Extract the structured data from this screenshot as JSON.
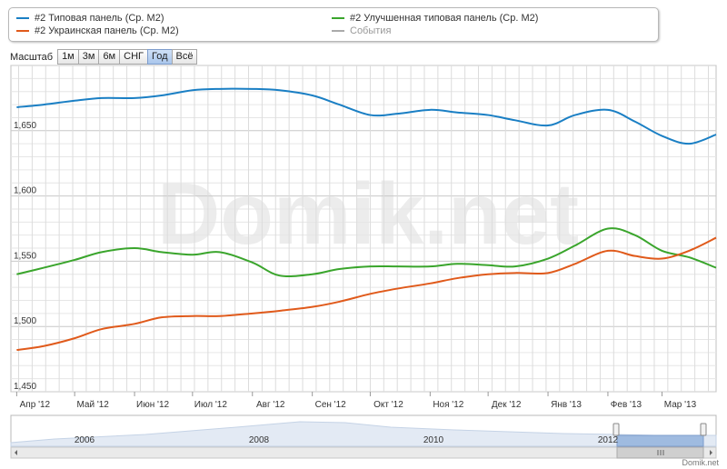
{
  "legend": {
    "items": [
      {
        "label": "#2 Типовая панель (Ср. М2)",
        "color": "#1a7fc4"
      },
      {
        "label": "#2 Улучшенная типовая панель (Ср. М2)",
        "color": "#3aa52c"
      },
      {
        "label": "#2 Украинская панель (Ср. М2)",
        "color": "#e05a1b"
      },
      {
        "label": "События",
        "color": "#aaaaaa"
      }
    ]
  },
  "zoom": {
    "label": "Масштаб",
    "buttons": [
      "1м",
      "3м",
      "6м",
      "СНГ",
      "Год",
      "Всё"
    ],
    "active": "Год"
  },
  "watermark": "Domik.net",
  "credit": "Domik.net",
  "chart_data": {
    "type": "line",
    "x": [
      "2012-04-01",
      "2012-04-15",
      "2012-05-01",
      "2012-05-15",
      "2012-06-01",
      "2012-06-15",
      "2012-07-01",
      "2012-07-15",
      "2012-08-01",
      "2012-08-15",
      "2012-09-01",
      "2012-09-15",
      "2012-10-01",
      "2012-10-15",
      "2012-11-01",
      "2012-11-15",
      "2012-12-01",
      "2012-12-15",
      "2013-01-01",
      "2013-01-15",
      "2013-02-01",
      "2013-02-15",
      "2013-03-01",
      "2013-03-15",
      "2013-03-29"
    ],
    "x_tick_labels": [
      "Апр '12",
      "Май '12",
      "Июн '12",
      "Июл '12",
      "Авг '12",
      "Сен '12",
      "Окт '12",
      "Ноя '12",
      "Дек '12",
      "Янв '13",
      "Фев '13",
      "Мар '13"
    ],
    "y_tick_labels": [
      "1,450",
      "1,500",
      "1,550",
      "1,600",
      "1,650"
    ],
    "ylim": [
      1450,
      1700
    ],
    "grid": true,
    "series": [
      {
        "name": "#2 Типовая панель (Ср. М2)",
        "color": "#1a7fc4",
        "values": [
          1668,
          1670,
          1673,
          1675,
          1675,
          1677,
          1681,
          1682,
          1682,
          1681,
          1677,
          1670,
          1662,
          1663,
          1666,
          1664,
          1662,
          1658,
          1654,
          1662,
          1666,
          1657,
          1646,
          1640,
          1647
        ]
      },
      {
        "name": "#2 Улучшенная типовая панель (Ср. М2)",
        "color": "#3aa52c",
        "values": [
          1540,
          1545,
          1551,
          1557,
          1560,
          1557,
          1555,
          1557,
          1549,
          1539,
          1540,
          1544,
          1546,
          1546,
          1546,
          1548,
          1547,
          1546,
          1552,
          1562,
          1575,
          1570,
          1558,
          1553,
          1545
        ]
      },
      {
        "name": "#2 Украинская панель (Ср. М2)",
        "color": "#e05a1b",
        "values": [
          1482,
          1485,
          1491,
          1498,
          1502,
          1507,
          1508,
          1508,
          1510,
          1512,
          1515,
          1519,
          1525,
          1529,
          1533,
          1537,
          1540,
          1541,
          1541,
          1548,
          1558,
          1554,
          1552,
          1558,
          1568
        ]
      }
    ],
    "navigator": {
      "year_labels": [
        "2006",
        "2008",
        "2010",
        "2012"
      ]
    }
  }
}
